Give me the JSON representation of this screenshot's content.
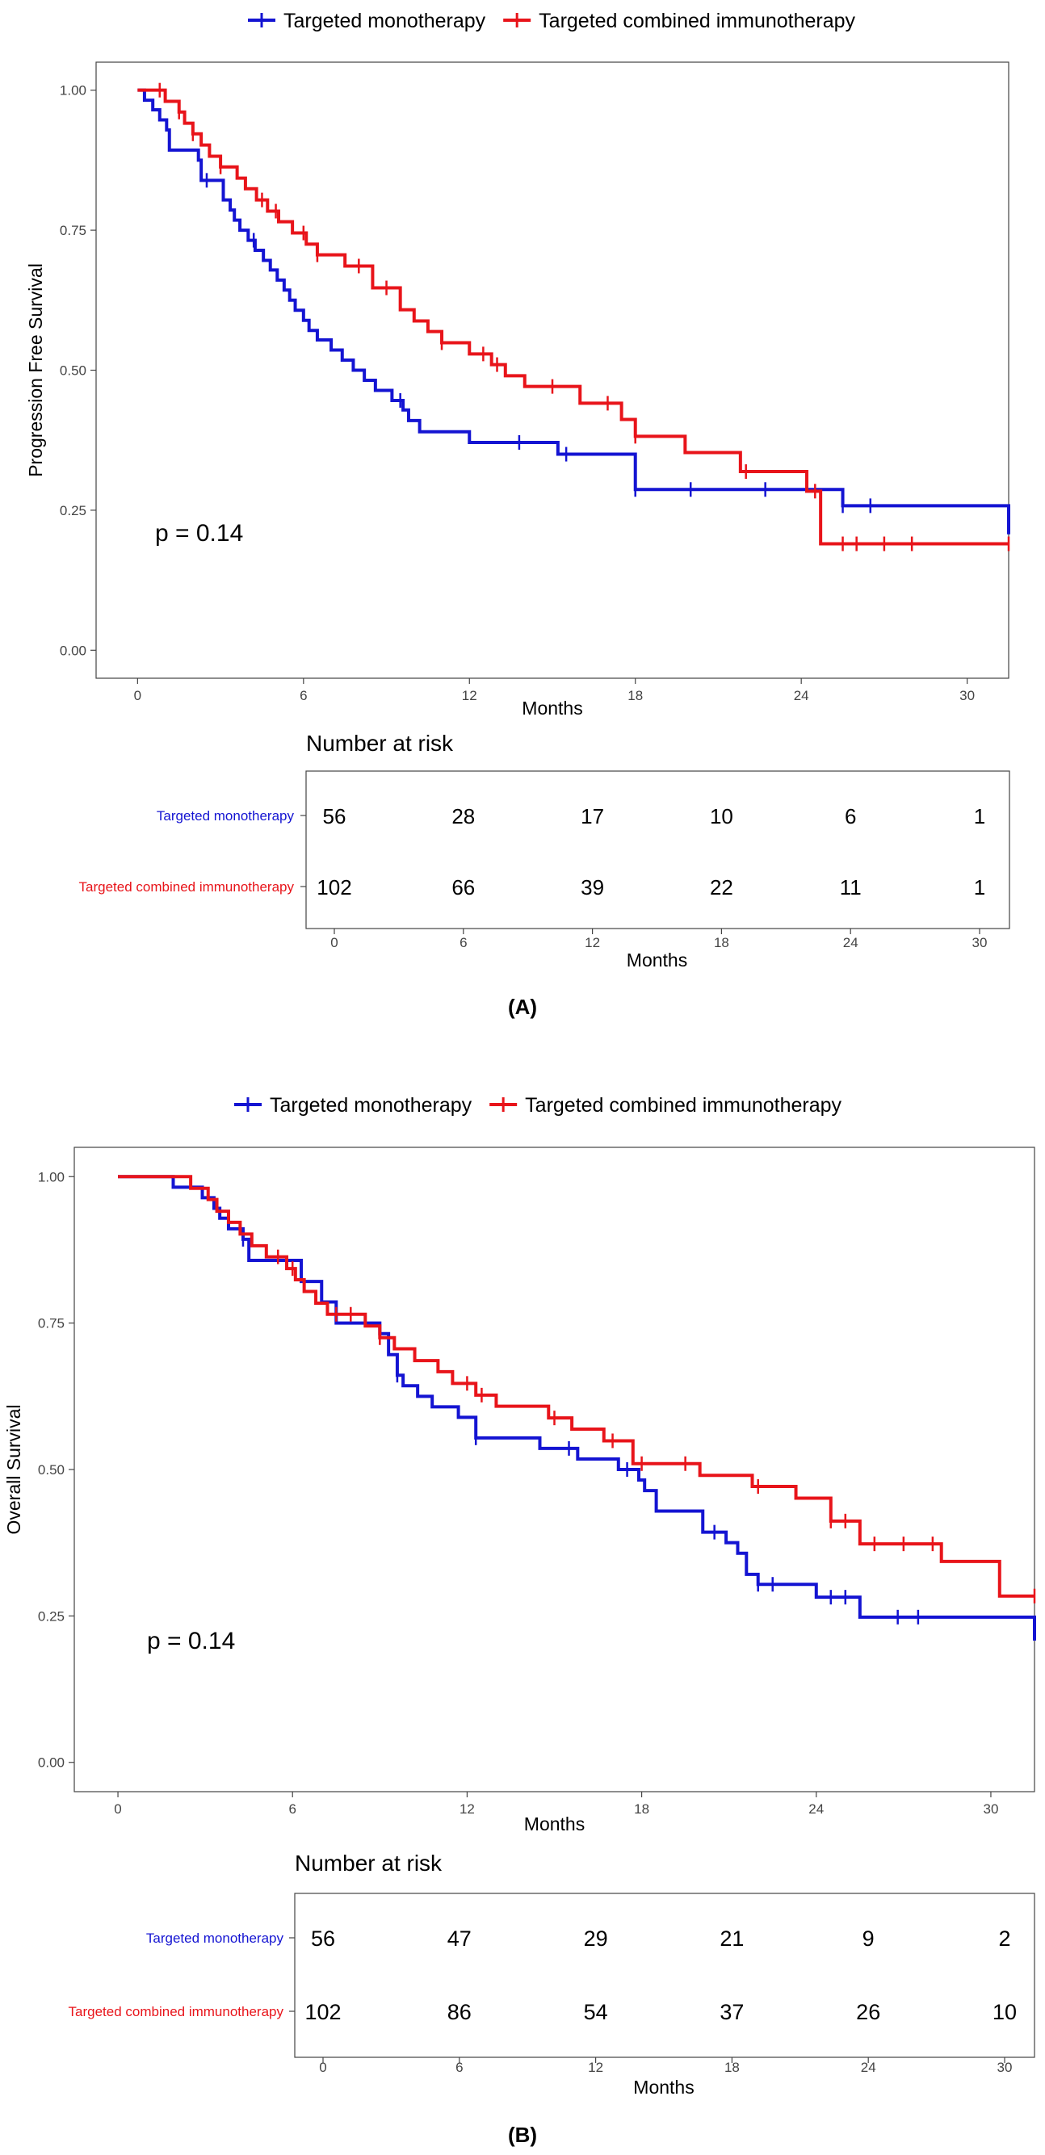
{
  "chart_data": [
    {
      "type": "line",
      "subtype": "kaplan-meier",
      "panel_label": "(A)",
      "xlabel": "Months",
      "ylabel": "Progression Free Survival",
      "xlim": [
        -1.5,
        31.5
      ],
      "ylim": [
        -0.05,
        1.05
      ],
      "xticks": [
        0,
        6,
        12,
        18,
        24,
        30
      ],
      "xtick_labels": [
        "0",
        "6",
        "12",
        "18",
        "24",
        "30"
      ],
      "yticks": [
        0,
        0.25,
        0.5,
        0.75,
        1
      ],
      "ytick_labels": [
        "0.00",
        "0.25",
        "0.50",
        "0.75",
        "1.00"
      ],
      "p_value_text": "p = 0.14",
      "legend_position": "top-center",
      "series": [
        {
          "name": "Targeted monotherapy",
          "color": "#1414d2",
          "x": [
            0,
            0.25,
            0.55,
            0.8,
            1.05,
            1.15,
            2.2,
            2.3,
            3.1,
            3.35,
            3.5,
            3.7,
            4.0,
            4.25,
            4.55,
            4.8,
            5.05,
            5.3,
            5.5,
            5.7,
            6.0,
            6.2,
            6.5,
            7.0,
            7.4,
            7.8,
            8.2,
            8.6,
            9.2,
            9.6,
            9.8,
            10.2,
            12.0,
            15.2,
            18.0,
            25.5,
            31.5
          ],
          "y": [
            1.0,
            0.982,
            0.965,
            0.947,
            0.929,
            0.893,
            0.875,
            0.839,
            0.804,
            0.786,
            0.768,
            0.75,
            0.732,
            0.714,
            0.696,
            0.679,
            0.661,
            0.643,
            0.625,
            0.607,
            0.589,
            0.571,
            0.554,
            0.536,
            0.518,
            0.5,
            0.482,
            0.464,
            0.446,
            0.429,
            0.41,
            0.39,
            0.371,
            0.35,
            0.287,
            0.258,
            0.207
          ],
          "censor_x": [
            2.5,
            4.2,
            9.5,
            13.8,
            15.5,
            18.0,
            20.0,
            22.7,
            25.5,
            26.5
          ],
          "risk": [
            56,
            28,
            17,
            10,
            6,
            1
          ]
        },
        {
          "name": "Targeted combined immunotherapy",
          "color": "#e8141a",
          "x": [
            0,
            1.0,
            1.5,
            1.7,
            2.0,
            2.3,
            2.6,
            3.0,
            3.6,
            3.9,
            4.3,
            4.7,
            5.1,
            5.6,
            6.1,
            6.5,
            7.5,
            8.5,
            9.5,
            10.0,
            10.5,
            11.0,
            12.0,
            12.8,
            13.3,
            14.0,
            16.0,
            17.5,
            18.0,
            19.8,
            21.8,
            24.2,
            24.7,
            31.5
          ],
          "y": [
            1.0,
            0.98,
            0.961,
            0.941,
            0.922,
            0.902,
            0.882,
            0.863,
            0.843,
            0.824,
            0.804,
            0.784,
            0.765,
            0.745,
            0.725,
            0.706,
            0.686,
            0.647,
            0.608,
            0.588,
            0.569,
            0.549,
            0.529,
            0.51,
            0.49,
            0.471,
            0.441,
            0.412,
            0.382,
            0.353,
            0.319,
            0.284,
            0.19,
            0.19
          ],
          "censor_x": [
            0.8,
            1.5,
            2.0,
            3.0,
            4.5,
            5.0,
            6.0,
            6.5,
            8.0,
            9.0,
            11.0,
            12.5,
            13.0,
            15.0,
            17.0,
            18.0,
            22.0,
            24.5,
            25.5,
            26.0,
            27.0,
            28.0,
            31.5
          ],
          "risk": [
            102,
            66,
            39,
            22,
            11,
            1
          ]
        }
      ],
      "risk_table": {
        "title": "Number at risk",
        "xlabel": "Months",
        "times": [
          0,
          6,
          12,
          18,
          24,
          30
        ],
        "tick_labels": [
          "0",
          "6",
          "12",
          "18",
          "24",
          "30"
        ]
      }
    },
    {
      "type": "line",
      "subtype": "kaplan-meier",
      "panel_label": "(B)",
      "xlabel": "Months",
      "ylabel": "Overall Survival",
      "xlim": [
        -1.5,
        31.5
      ],
      "ylim": [
        -0.05,
        1.05
      ],
      "xticks": [
        0,
        6,
        12,
        18,
        24,
        30
      ],
      "xtick_labels": [
        "0",
        "6",
        "12",
        "18",
        "24",
        "30"
      ],
      "yticks": [
        0,
        0.25,
        0.5,
        0.75,
        1
      ],
      "ytick_labels": [
        "0.00",
        "0.25",
        "0.50",
        "0.75",
        "1.00"
      ],
      "p_value_text": "p = 0.14",
      "legend_position": "top-center",
      "series": [
        {
          "name": "Targeted monotherapy",
          "color": "#1414d2",
          "x": [
            0,
            1.9,
            2.9,
            3.3,
            3.5,
            3.8,
            4.3,
            4.5,
            6.3,
            7.0,
            7.5,
            9.0,
            9.3,
            9.6,
            9.8,
            10.3,
            10.8,
            11.7,
            12.3,
            14.5,
            15.8,
            17.2,
            17.9,
            18.1,
            18.5,
            20.1,
            20.9,
            21.3,
            21.6,
            22.0,
            24.0,
            25.5,
            31.5
          ],
          "y": [
            1.0,
            0.982,
            0.964,
            0.946,
            0.929,
            0.911,
            0.893,
            0.857,
            0.821,
            0.786,
            0.75,
            0.732,
            0.696,
            0.661,
            0.643,
            0.625,
            0.607,
            0.589,
            0.554,
            0.536,
            0.518,
            0.5,
            0.482,
            0.464,
            0.429,
            0.393,
            0.375,
            0.357,
            0.321,
            0.304,
            0.282,
            0.248,
            0.208
          ],
          "censor_x": [
            4.3,
            9.6,
            12.3,
            15.5,
            17.5,
            20.5,
            22.0,
            22.5,
            24.5,
            25.0,
            26.8,
            27.5
          ],
          "risk": [
            56,
            47,
            29,
            21,
            9,
            2
          ]
        },
        {
          "name": "Targeted combined immunotherapy",
          "color": "#e8141a",
          "x": [
            0,
            2.5,
            3.1,
            3.4,
            3.8,
            4.2,
            4.6,
            5.1,
            5.8,
            6.1,
            6.4,
            6.8,
            7.2,
            8.5,
            9.0,
            9.5,
            10.2,
            11.0,
            11.5,
            12.3,
            13.0,
            14.8,
            15.6,
            16.7,
            17.7,
            20.0,
            21.8,
            23.3,
            24.5,
            25.5,
            28.3,
            30.3,
            31.5
          ],
          "y": [
            1.0,
            0.98,
            0.961,
            0.941,
            0.922,
            0.902,
            0.882,
            0.863,
            0.843,
            0.824,
            0.804,
            0.784,
            0.765,
            0.745,
            0.725,
            0.706,
            0.686,
            0.667,
            0.647,
            0.627,
            0.608,
            0.588,
            0.569,
            0.549,
            0.51,
            0.49,
            0.471,
            0.451,
            0.412,
            0.373,
            0.343,
            0.284,
            0.284
          ],
          "censor_x": [
            5.5,
            6.0,
            7.5,
            8.0,
            9.0,
            12.0,
            12.5,
            15.0,
            17.0,
            18.0,
            19.5,
            22.0,
            24.5,
            25.0,
            26.0,
            27.0,
            28.0,
            31.5
          ],
          "risk": [
            102,
            86,
            54,
            37,
            26,
            10
          ]
        }
      ],
      "risk_table": {
        "title": "Number at risk",
        "xlabel": "Months",
        "times": [
          0,
          6,
          12,
          18,
          24,
          30
        ],
        "tick_labels": [
          "0",
          "6",
          "12",
          "18",
          "24",
          "30"
        ]
      }
    }
  ]
}
